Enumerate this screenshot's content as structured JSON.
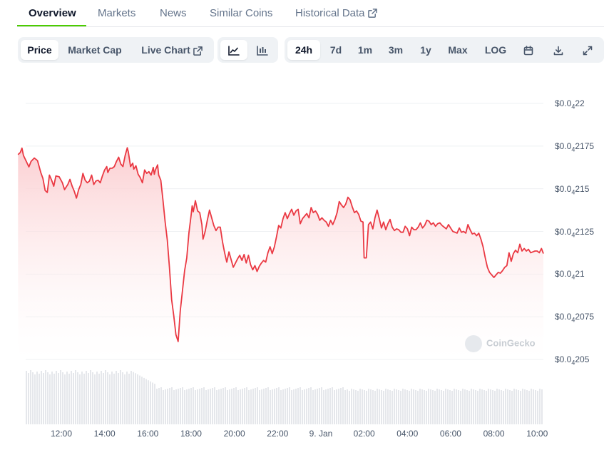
{
  "tabs": [
    {
      "label": "Overview",
      "active": true
    },
    {
      "label": "Markets",
      "active": false
    },
    {
      "label": "News",
      "active": false
    },
    {
      "label": "Similar Coins",
      "active": false
    },
    {
      "label": "Historical Data",
      "active": false,
      "external": true
    }
  ],
  "view_toggle": [
    {
      "label": "Price",
      "active": true
    },
    {
      "label": "Market Cap",
      "active": false
    },
    {
      "label": "Live Chart",
      "active": false,
      "external": true
    }
  ],
  "chart_style": [
    {
      "icon": "line-chart-icon",
      "active": true
    },
    {
      "icon": "candlestick-icon",
      "active": false
    }
  ],
  "ranges": [
    {
      "label": "24h",
      "active": true
    },
    {
      "label": "7d",
      "active": false
    },
    {
      "label": "1m",
      "active": false
    },
    {
      "label": "3m",
      "active": false
    },
    {
      "label": "1y",
      "active": false
    },
    {
      "label": "Max",
      "active": false
    },
    {
      "label": "LOG",
      "active": false
    }
  ],
  "tools": [
    {
      "icon": "calendar-icon"
    },
    {
      "icon": "download-icon"
    },
    {
      "icon": "fullscreen-icon"
    }
  ],
  "watermark": "CoinGecko",
  "colors": {
    "line": "#ea3943",
    "fill_top": "#fbc9cc",
    "fill_bottom": "#ffffff",
    "volume": "#e5e7eb",
    "accent": "#4bcc00"
  },
  "chart_data": {
    "type": "line",
    "y_axis": [
      {
        "prefix": "$0.0",
        "sub": "4",
        "rest": "22",
        "value": 2.2e-06
      },
      {
        "prefix": "$0.0",
        "sub": "4",
        "rest": "2175",
        "value": 2.175e-06
      },
      {
        "prefix": "$0.0",
        "sub": "4",
        "rest": "215",
        "value": 2.15e-06
      },
      {
        "prefix": "$0.0",
        "sub": "4",
        "rest": "2125",
        "value": 2.125e-06
      },
      {
        "prefix": "$0.0",
        "sub": "4",
        "rest": "21",
        "value": 2.1e-06
      },
      {
        "prefix": "$0.0",
        "sub": "4",
        "rest": "2075",
        "value": 2.075e-06
      },
      {
        "prefix": "$0.0",
        "sub": "4",
        "rest": "205",
        "value": 2.05e-06
      }
    ],
    "ylim": [
      2.05e-06,
      2.2e-06
    ],
    "x_ticks": [
      {
        "label": "12:00",
        "h": 2.0
      },
      {
        "label": "14:00",
        "h": 4.0
      },
      {
        "label": "16:00",
        "h": 6.0
      },
      {
        "label": "18:00",
        "h": 8.0
      },
      {
        "label": "20:00",
        "h": 10.0
      },
      {
        "label": "22:00",
        "h": 12.0
      },
      {
        "label": "9. Jan",
        "h": 14.0
      },
      {
        "label": "02:00",
        "h": 16.0
      },
      {
        "label": "04:00",
        "h": 18.0
      },
      {
        "label": "06:00",
        "h": 20.0
      },
      {
        "label": "08:00",
        "h": 22.0
      },
      {
        "label": "10:00",
        "h": 24.0
      }
    ],
    "x_unit_note": "hours after 10:00 of the day before 9. Jan",
    "series": [
      {
        "points": [
          [
            0.0,
            2.17e-06
          ],
          [
            0.1,
            2.1712e-06
          ],
          [
            0.18,
            2.1738e-06
          ],
          [
            0.25,
            2.1695e-06
          ],
          [
            0.4,
            2.1655e-06
          ],
          [
            0.5,
            2.1628e-06
          ],
          [
            0.6,
            2.166e-06
          ],
          [
            0.75,
            2.168e-06
          ],
          [
            0.9,
            2.1665e-06
          ],
          [
            1.05,
            2.1595e-06
          ],
          [
            1.15,
            2.156e-06
          ],
          [
            1.25,
            2.149e-06
          ],
          [
            1.35,
            2.1478e-06
          ],
          [
            1.45,
            2.158e-06
          ],
          [
            1.55,
            2.155e-06
          ],
          [
            1.65,
            2.1515e-06
          ],
          [
            1.75,
            2.1575e-06
          ],
          [
            1.9,
            2.157e-06
          ],
          [
            2.05,
            2.1535e-06
          ],
          [
            2.15,
            2.1495e-06
          ],
          [
            2.3,
            2.1525e-06
          ],
          [
            2.4,
            2.1555e-06
          ],
          [
            2.5,
            2.1515e-06
          ],
          [
            2.6,
            2.1485e-06
          ],
          [
            2.7,
            2.1445e-06
          ],
          [
            2.8,
            2.1495e-06
          ],
          [
            2.9,
            2.1525e-06
          ],
          [
            3.0,
            2.159e-06
          ],
          [
            3.1,
            2.155e-06
          ],
          [
            3.2,
            2.1535e-06
          ],
          [
            3.3,
            2.1545e-06
          ],
          [
            3.4,
            2.158e-06
          ],
          [
            3.5,
            2.1525e-06
          ],
          [
            3.6,
            2.1545e-06
          ],
          [
            3.7,
            2.155e-06
          ],
          [
            3.8,
            2.1535e-06
          ],
          [
            3.9,
            2.1575e-06
          ],
          [
            4.0,
            2.161e-06
          ],
          [
            4.1,
            2.163e-06
          ],
          [
            4.15,
            2.1595e-06
          ],
          [
            4.25,
            2.162e-06
          ],
          [
            4.35,
            2.162e-06
          ],
          [
            4.45,
            2.163e-06
          ],
          [
            4.55,
            2.166e-06
          ],
          [
            4.65,
            2.1685e-06
          ],
          [
            4.75,
            2.1645e-06
          ],
          [
            4.85,
            2.163e-06
          ],
          [
            4.95,
            2.1695e-06
          ],
          [
            5.05,
            2.174e-06
          ],
          [
            5.1,
            2.1715e-06
          ],
          [
            5.2,
            2.163e-06
          ],
          [
            5.3,
            2.165e-06
          ],
          [
            5.35,
            2.1615e-06
          ],
          [
            5.45,
            2.1635e-06
          ],
          [
            5.55,
            2.1585e-06
          ],
          [
            5.65,
            2.1565e-06
          ],
          [
            5.75,
            2.1535e-06
          ],
          [
            5.85,
            2.161e-06
          ],
          [
            5.95,
            2.159e-06
          ],
          [
            6.05,
            2.16e-06
          ],
          [
            6.15,
            2.158e-06
          ],
          [
            6.25,
            2.1625e-06
          ],
          [
            6.3,
            2.1585e-06
          ],
          [
            6.35,
            2.161e-06
          ],
          [
            6.45,
            2.164e-06
          ],
          [
            6.5,
            2.158e-06
          ],
          [
            6.6,
            2.155e-06
          ],
          [
            6.7,
            2.143e-06
          ],
          [
            6.8,
            2.1305e-06
          ],
          [
            6.9,
            2.12e-06
          ],
          [
            7.0,
            2.104e-06
          ],
          [
            7.1,
            2.085e-06
          ],
          [
            7.2,
            2.0755e-06
          ],
          [
            7.3,
            2.0645e-06
          ],
          [
            7.4,
            2.0605e-06
          ],
          [
            7.5,
            2.0785e-06
          ],
          [
            7.6,
            2.09e-06
          ],
          [
            7.7,
            2.102e-06
          ],
          [
            7.8,
            2.1095e-06
          ],
          [
            7.9,
            2.124e-06
          ],
          [
            8.0,
            2.1345e-06
          ],
          [
            8.05,
            2.14e-06
          ],
          [
            8.1,
            2.1365e-06
          ],
          [
            8.2,
            2.143e-06
          ],
          [
            8.3,
            2.137e-06
          ],
          [
            8.4,
            2.136e-06
          ],
          [
            8.5,
            2.129e-06
          ],
          [
            8.55,
            2.1205e-06
          ],
          [
            8.65,
            2.125e-06
          ],
          [
            8.75,
            2.1315e-06
          ],
          [
            8.85,
            2.1375e-06
          ],
          [
            8.95,
            2.133e-06
          ],
          [
            9.05,
            2.1285e-06
          ],
          [
            9.15,
            2.1255e-06
          ],
          [
            9.25,
            2.1275e-06
          ],
          [
            9.35,
            2.1275e-06
          ],
          [
            9.45,
            2.119e-06
          ],
          [
            9.55,
            2.1125e-06
          ],
          [
            9.65,
            2.107e-06
          ],
          [
            9.75,
            2.113e-06
          ],
          [
            9.85,
            2.1085e-06
          ],
          [
            9.95,
            2.104e-06
          ],
          [
            10.05,
            2.1065e-06
          ],
          [
            10.15,
            2.109e-06
          ],
          [
            10.25,
            2.111e-06
          ],
          [
            10.35,
            2.108e-06
          ],
          [
            10.45,
            2.1115e-06
          ],
          [
            10.55,
            2.1065e-06
          ],
          [
            10.65,
            2.111e-06
          ],
          [
            10.75,
            2.1055e-06
          ],
          [
            10.85,
            2.1025e-06
          ],
          [
            10.95,
            2.105e-06
          ],
          [
            11.05,
            2.1015e-06
          ],
          [
            11.15,
            2.1045e-06
          ],
          [
            11.25,
            2.1065e-06
          ],
          [
            11.35,
            2.108e-06
          ],
          [
            11.45,
            2.107e-06
          ],
          [
            11.55,
            2.1125e-06
          ],
          [
            11.65,
            2.116e-06
          ],
          [
            11.75,
            2.112e-06
          ],
          [
            11.85,
            2.116e-06
          ],
          [
            11.95,
            2.122e-06
          ],
          [
            12.05,
            2.1285e-06
          ],
          [
            12.15,
            2.127e-06
          ],
          [
            12.25,
            2.1325e-06
          ],
          [
            12.35,
            2.136e-06
          ],
          [
            12.45,
            2.1325e-06
          ],
          [
            12.55,
            2.1355e-06
          ],
          [
            12.65,
            2.138e-06
          ],
          [
            12.75,
            2.1345e-06
          ],
          [
            12.85,
            2.137e-06
          ],
          [
            12.95,
            2.138e-06
          ],
          [
            13.05,
            2.1295e-06
          ],
          [
            13.15,
            2.1325e-06
          ],
          [
            13.25,
            2.134e-06
          ],
          [
            13.35,
            2.1355e-06
          ],
          [
            13.45,
            2.133e-06
          ],
          [
            13.55,
            2.139e-06
          ],
          [
            13.65,
            2.136e-06
          ],
          [
            13.75,
            2.137e-06
          ],
          [
            13.85,
            2.135e-06
          ],
          [
            13.95,
            2.1315e-06
          ],
          [
            14.05,
            2.133e-06
          ],
          [
            14.15,
            2.1315e-06
          ],
          [
            14.25,
            2.1305e-06
          ],
          [
            14.35,
            2.128e-06
          ],
          [
            14.45,
            2.1315e-06
          ],
          [
            14.55,
            2.129e-06
          ],
          [
            14.65,
            2.132e-06
          ],
          [
            14.75,
            2.136e-06
          ],
          [
            14.85,
            2.1425e-06
          ],
          [
            14.95,
            2.1405e-06
          ],
          [
            15.05,
            2.139e-06
          ],
          [
            15.15,
            2.141e-06
          ],
          [
            15.25,
            2.145e-06
          ],
          [
            15.35,
            2.1435e-06
          ],
          [
            15.45,
            2.1395e-06
          ],
          [
            15.55,
            2.136e-06
          ],
          [
            15.65,
            2.137e-06
          ],
          [
            15.75,
            2.135e-06
          ],
          [
            15.85,
            2.131e-06
          ],
          [
            15.95,
            2.1305e-06
          ],
          [
            16.0,
            2.1095e-06
          ],
          [
            16.1,
            2.1095e-06
          ],
          [
            16.2,
            2.129e-06
          ],
          [
            16.3,
            2.1305e-06
          ],
          [
            16.4,
            2.1265e-06
          ],
          [
            16.5,
            2.133e-06
          ],
          [
            16.6,
            2.1375e-06
          ],
          [
            16.7,
            2.1325e-06
          ],
          [
            16.8,
            2.127e-06
          ],
          [
            16.9,
            2.1305e-06
          ],
          [
            17.0,
            2.126e-06
          ],
          [
            17.1,
            2.1295e-06
          ],
          [
            17.2,
            2.132e-06
          ],
          [
            17.3,
            2.1275e-06
          ],
          [
            17.4,
            2.1255e-06
          ],
          [
            17.5,
            2.1265e-06
          ],
          [
            17.6,
            2.126e-06
          ],
          [
            17.7,
            2.1245e-06
          ],
          [
            17.8,
            2.1245e-06
          ],
          [
            17.9,
            2.128e-06
          ],
          [
            18.0,
            2.1265e-06
          ],
          [
            18.1,
            2.1225e-06
          ],
          [
            18.2,
            2.1275e-06
          ],
          [
            18.3,
            2.126e-06
          ],
          [
            18.4,
            2.126e-06
          ],
          [
            18.5,
            2.1275e-06
          ],
          [
            18.6,
            2.13e-06
          ],
          [
            18.7,
            2.127e-06
          ],
          [
            18.8,
            2.1285e-06
          ],
          [
            18.9,
            2.1315e-06
          ],
          [
            19.0,
            2.131e-06
          ],
          [
            19.1,
            2.129e-06
          ],
          [
            19.2,
            2.13e-06
          ],
          [
            19.3,
            2.128e-06
          ],
          [
            19.4,
            2.1295e-06
          ],
          [
            19.5,
            2.13e-06
          ],
          [
            19.6,
            2.1285e-06
          ],
          [
            19.7,
            2.1275e-06
          ],
          [
            19.8,
            2.1265e-06
          ],
          [
            19.9,
            2.129e-06
          ],
          [
            20.0,
            2.127e-06
          ],
          [
            20.1,
            2.125e-06
          ],
          [
            20.2,
            2.1245e-06
          ],
          [
            20.3,
            2.124e-06
          ],
          [
            20.4,
            2.127e-06
          ],
          [
            20.5,
            2.1245e-06
          ],
          [
            20.6,
            2.125e-06
          ],
          [
            20.7,
            2.124e-06
          ],
          [
            20.8,
            2.129e-06
          ],
          [
            20.9,
            2.126e-06
          ],
          [
            21.0,
            2.1235e-06
          ],
          [
            21.1,
            2.124e-06
          ],
          [
            21.2,
            2.1225e-06
          ],
          [
            21.3,
            2.124e-06
          ],
          [
            21.4,
            2.1205e-06
          ],
          [
            21.5,
            2.116e-06
          ],
          [
            21.6,
            2.1095e-06
          ],
          [
            21.7,
            2.104e-06
          ],
          [
            21.8,
            2.101e-06
          ],
          [
            21.9,
            2.0995e-06
          ],
          [
            22.0,
            2.098e-06
          ],
          [
            22.1,
            2.0995e-06
          ],
          [
            22.2,
            2.101e-06
          ],
          [
            22.3,
            2.1005e-06
          ],
          [
            22.4,
            2.102e-06
          ],
          [
            22.5,
            2.104e-06
          ],
          [
            22.6,
            2.105e-06
          ],
          [
            22.7,
            2.1125e-06
          ],
          [
            22.8,
            2.1075e-06
          ],
          [
            22.9,
            2.112e-06
          ],
          [
            23.0,
            2.114e-06
          ],
          [
            23.1,
            2.1125e-06
          ],
          [
            23.2,
            2.1175e-06
          ],
          [
            23.3,
            2.1135e-06
          ],
          [
            23.4,
            2.115e-06
          ],
          [
            23.5,
            2.1135e-06
          ],
          [
            23.6,
            2.1145e-06
          ],
          [
            23.7,
            2.1125e-06
          ],
          [
            23.8,
            2.113e-06
          ],
          [
            23.9,
            2.1135e-06
          ],
          [
            24.0,
            2.1135e-06
          ],
          [
            24.1,
            2.1125e-06
          ],
          [
            24.2,
            2.115e-06
          ],
          [
            24.3,
            2.112e-06
          ]
        ]
      }
    ]
  }
}
